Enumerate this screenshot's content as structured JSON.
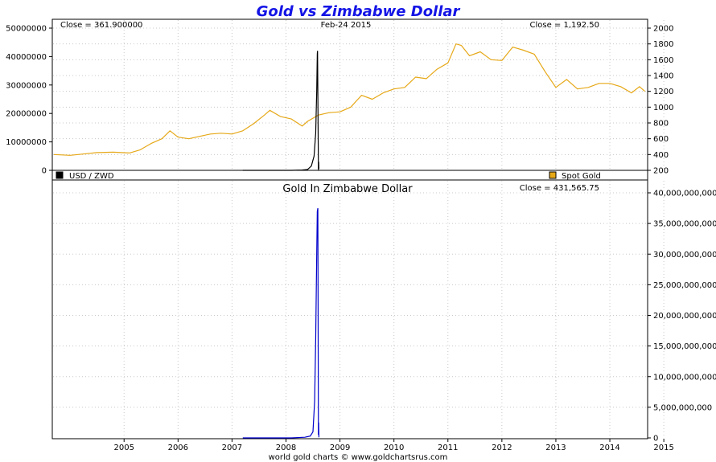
{
  "title": "Gold vs Zimbabwe Dollar",
  "footer": "world gold charts © www.goldchartsrus.com",
  "colors": {
    "title": "#1414e6",
    "gold": "#e6a817",
    "usd_zwd": "#000000",
    "gold_zwd": "#0000cc",
    "grid": "#c8c8c8",
    "frame": "#000000"
  },
  "chart_data": [
    {
      "type": "line",
      "panel": "top",
      "date_label": "Feb-24 2015",
      "left_close": "Close = 361.900000",
      "right_close": "Close = 1,192.50",
      "x_ticks": [
        "2005",
        "2006",
        "2007",
        "2008",
        "2009",
        "2010",
        "2011",
        "2012",
        "2013",
        "2014",
        "2015"
      ],
      "y_left": {
        "ticks": [
          "0",
          "10000000",
          "20000000",
          "30000000",
          "40000000",
          "50000000"
        ],
        "range": [
          0,
          50000000
        ]
      },
      "y_right": {
        "ticks": [
          "200",
          "400",
          "600",
          "800",
          "1000",
          "1200",
          "1400",
          "1600",
          "1800",
          "2000"
        ],
        "range": [
          200,
          2000
        ]
      },
      "grid": true,
      "legend": [
        {
          "name": "USD / ZWD",
          "color": "#000000",
          "position": "bottom-left"
        },
        {
          "name": "Spot Gold",
          "color": "#e6a817",
          "position": "bottom-right"
        }
      ],
      "series": [
        {
          "name": "Spot Gold",
          "axis": "right",
          "x": [
            2004.2,
            2004.5,
            2004.8,
            2005.0,
            2005.3,
            2005.6,
            2005.8,
            2006.0,
            2006.2,
            2006.35,
            2006.5,
            2006.7,
            2006.9,
            2007.1,
            2007.3,
            2007.5,
            2007.7,
            2007.9,
            2008.1,
            2008.2,
            2008.4,
            2008.6,
            2008.8,
            2008.9,
            2009.1,
            2009.3,
            2009.5,
            2009.7,
            2009.9,
            2010.1,
            2010.3,
            2010.5,
            2010.7,
            2010.9,
            2011.1,
            2011.3,
            2011.5,
            2011.65,
            2011.75,
            2011.9,
            2012.1,
            2012.3,
            2012.5,
            2012.7,
            2012.9,
            2013.1,
            2013.3,
            2013.5,
            2013.7,
            2013.9,
            2014.1,
            2014.3,
            2014.5,
            2014.7,
            2014.9,
            2015.05,
            2015.15
          ],
          "y": [
            400,
            390,
            410,
            425,
            430,
            420,
            460,
            540,
            600,
            700,
            620,
            600,
            630,
            660,
            670,
            660,
            700,
            790,
            900,
            960,
            880,
            850,
            760,
            820,
            900,
            930,
            940,
            1000,
            1150,
            1100,
            1180,
            1230,
            1250,
            1380,
            1360,
            1480,
            1560,
            1800,
            1780,
            1650,
            1700,
            1600,
            1590,
            1760,
            1720,
            1670,
            1450,
            1250,
            1350,
            1230,
            1250,
            1300,
            1300,
            1260,
            1180,
            1260,
            1200
          ]
        },
        {
          "name": "USD / ZWD",
          "axis": "left",
          "x": [
            2007.7,
            2008.0,
            2008.3,
            2008.6,
            2008.8,
            2008.9,
            2008.97,
            2009.02,
            2009.05,
            2009.07,
            2009.08,
            2009.085,
            2009.1,
            2009.105,
            2009.11
          ],
          "y": [
            0,
            0,
            0,
            0,
            100000,
            300000,
            1500000,
            5000000,
            13000000,
            28000000,
            41000000,
            42000000,
            100000,
            3000000,
            500000
          ]
        }
      ]
    },
    {
      "type": "line",
      "panel": "bottom",
      "title": "Gold In Zimbabwe Dollar",
      "right_close": "Close = 431,565.75",
      "x_ticks": [
        "2005",
        "2006",
        "2007",
        "2008",
        "2009",
        "2010",
        "2011",
        "2012",
        "2013",
        "2014",
        "2015"
      ],
      "y_right": {
        "ticks": [
          "0",
          "5,000,000,000",
          "10,000,000,000",
          "15,000,000,000",
          "20,000,000,000",
          "25,000,000,000",
          "30,000,000,000",
          "35,000,000,000",
          "40,000,000,000"
        ],
        "range": [
          0,
          40000000000
        ]
      },
      "grid": true,
      "series": [
        {
          "name": "Gold In Zimbabwe Dollar",
          "axis": "right",
          "x": [
            2007.7,
            2008.3,
            2008.6,
            2008.85,
            2008.95,
            2009.0,
            2009.03,
            2009.05,
            2009.07,
            2009.08,
            2009.09,
            2009.1,
            2009.105,
            2009.11
          ],
          "y": [
            0,
            0,
            0,
            100000000,
            300000000,
            1000000000,
            6000000000,
            16000000000,
            30000000000,
            37000000000,
            37500000000,
            500000000,
            2500000000,
            100000000
          ]
        }
      ]
    }
  ]
}
